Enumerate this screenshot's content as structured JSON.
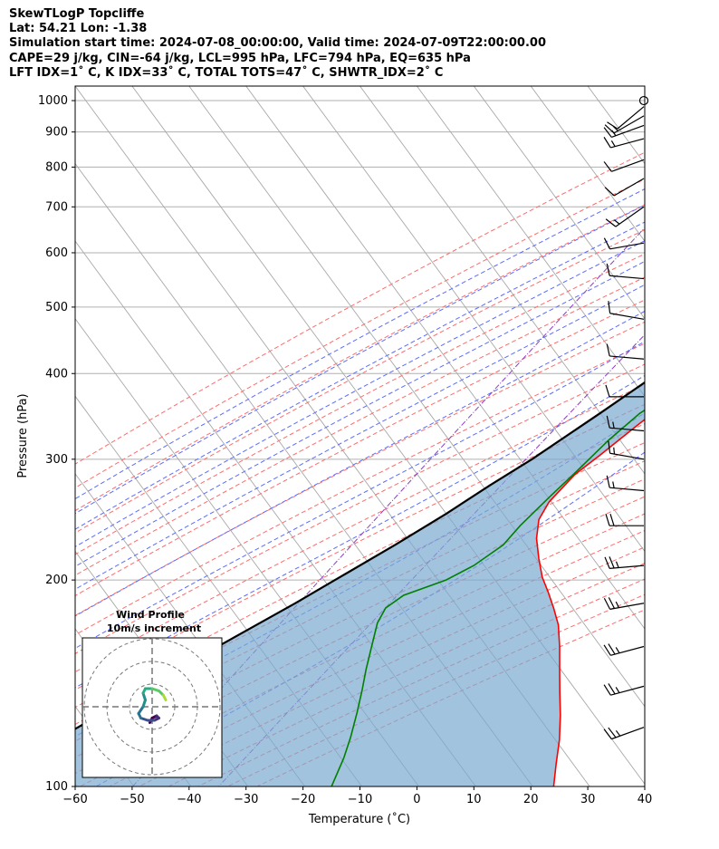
{
  "header": {
    "line1": "SkewTLogP Topcliffe",
    "line2": "Lat: 54.21   Lon: -1.38",
    "line3": "Simulation start time: 2024-07-08_00:00:00, Valid time: 2024-07-09T22:00:00.00",
    "line4": "CAPE=29 j/kg, CIN=-64 j/kg, LCL=995 hPa, LFC=794 hPa, EQ=635 hPa",
    "line5": "LFT IDX=1˚ C, K IDX=33˚ C, TOTAL TOTS=47˚ C, SHWTR_IDX=2˚ C"
  },
  "inset": {
    "title_line1": "Wind Profile",
    "title_line2": "10m/s increment"
  },
  "chart_data": {
    "type": "line",
    "subtype": "skew-T log-P diagram",
    "xlabel": "Temperature (˚C)",
    "ylabel": "Pressure (hPa)",
    "xlim": [
      -60,
      40
    ],
    "ylim": [
      1050,
      100
    ],
    "y_scale": "log",
    "x_ticks": [
      -60,
      -50,
      -40,
      -30,
      -20,
      -10,
      0,
      10,
      20,
      30,
      40
    ],
    "y_ticks": [
      1000,
      900,
      800,
      700,
      600,
      500,
      400,
      300,
      200,
      100
    ],
    "grid": true,
    "series": [
      {
        "kind": "temperature",
        "color": "#ff0000",
        "points": [
          [
            18,
            1000
          ],
          [
            18.5,
            970
          ],
          [
            17.5,
            930
          ],
          [
            16.5,
            880
          ],
          [
            14.5,
            800
          ],
          [
            13,
            750
          ],
          [
            11.5,
            700
          ],
          [
            10,
            650
          ],
          [
            8,
            600
          ],
          [
            5.5,
            550
          ],
          [
            3,
            500
          ],
          [
            0,
            450
          ],
          [
            -3,
            400
          ],
          [
            -5.5,
            365
          ],
          [
            -8,
            335
          ],
          [
            -10.5,
            305
          ],
          [
            -12.5,
            285
          ],
          [
            -13.5,
            260
          ],
          [
            -13,
            245
          ],
          [
            -11,
            230
          ],
          [
            -8,
            215
          ],
          [
            -5,
            202
          ],
          [
            -2,
            192
          ],
          [
            1,
            182
          ],
          [
            4,
            172
          ],
          [
            7,
            160
          ],
          [
            10,
            148
          ],
          [
            13,
            137
          ],
          [
            16,
            127
          ],
          [
            19,
            117
          ],
          [
            21.5,
            108
          ],
          [
            24,
            100
          ]
        ]
      },
      {
        "kind": "dewpoint",
        "color": "#008000",
        "points": [
          [
            17.5,
            1000
          ],
          [
            16.5,
            960
          ],
          [
            14.5,
            910
          ],
          [
            13,
            870
          ],
          [
            12,
            820
          ],
          [
            11.5,
            780
          ],
          [
            11,
            740
          ],
          [
            10.5,
            700
          ],
          [
            9.5,
            660
          ],
          [
            8,
            620
          ],
          [
            6,
            570
          ],
          [
            3.5,
            510
          ],
          [
            1,
            460
          ],
          [
            -2,
            410
          ],
          [
            -5.5,
            380
          ],
          [
            -9,
            350
          ],
          [
            -11,
            320
          ],
          [
            -12.5,
            290
          ],
          [
            -14,
            265
          ],
          [
            -15.5,
            240
          ],
          [
            -16,
            225
          ],
          [
            -18.5,
            210
          ],
          [
            -21.5,
            200
          ],
          [
            -27,
            190
          ],
          [
            -28.5,
            182
          ],
          [
            -28,
            173
          ],
          [
            -26,
            160
          ],
          [
            -24,
            148
          ],
          [
            -22,
            138
          ],
          [
            -20,
            128
          ],
          [
            -18,
            118
          ],
          [
            -16.5,
            110
          ],
          [
            -15,
            100
          ]
        ]
      },
      {
        "kind": "parcel",
        "color": "#000000",
        "points": [
          [
            17.5,
            1000
          ],
          [
            17,
            950
          ],
          [
            15.8,
            900
          ],
          [
            14.2,
            850
          ],
          [
            12.5,
            800
          ],
          [
            10.5,
            750
          ],
          [
            8.3,
            700
          ],
          [
            6,
            650
          ],
          [
            3.5,
            600
          ],
          [
            0.5,
            550
          ],
          [
            -2.5,
            500
          ],
          [
            -6.5,
            450
          ],
          [
            -11,
            400
          ],
          [
            -16,
            350
          ],
          [
            -22,
            300
          ],
          [
            -26,
            275
          ],
          [
            -30,
            250
          ],
          [
            -35,
            225
          ],
          [
            -41,
            200
          ],
          [
            -45,
            185
          ],
          [
            -49,
            172
          ],
          [
            -53,
            160
          ],
          [
            -58,
            145
          ],
          [
            -63,
            132
          ],
          [
            -68,
            120
          ],
          [
            -73,
            110
          ],
          [
            -77,
            100
          ]
        ]
      }
    ],
    "shading": "CAPE region between parcel and temperature profile",
    "wind_barbs": [
      {
        "pressure": 1000,
        "type": "calm"
      },
      {
        "pressure": 980,
        "direction_deg": 230,
        "speed_kt": 10
      },
      {
        "pressure": 950,
        "direction_deg": 240,
        "speed_kt": 15
      },
      {
        "pressure": 920,
        "direction_deg": 250,
        "speed_kt": 15
      },
      {
        "pressure": 880,
        "direction_deg": 255,
        "speed_kt": 15
      },
      {
        "pressure": 820,
        "direction_deg": 250,
        "speed_kt": 10
      },
      {
        "pressure": 770,
        "direction_deg": 240,
        "speed_kt": 10
      },
      {
        "pressure": 700,
        "direction_deg": 235,
        "speed_kt": 15
      },
      {
        "pressure": 620,
        "direction_deg": 260,
        "speed_kt": 10
      },
      {
        "pressure": 550,
        "direction_deg": 275,
        "speed_kt": 10
      },
      {
        "pressure": 480,
        "direction_deg": 280,
        "speed_kt": 10
      },
      {
        "pressure": 420,
        "direction_deg": 275,
        "speed_kt": 10
      },
      {
        "pressure": 370,
        "direction_deg": 270,
        "speed_kt": 10
      },
      {
        "pressure": 330,
        "direction_deg": 275,
        "speed_kt": 15
      },
      {
        "pressure": 300,
        "direction_deg": 280,
        "speed_kt": 15
      },
      {
        "pressure": 270,
        "direction_deg": 275,
        "speed_kt": 15
      },
      {
        "pressure": 240,
        "direction_deg": 270,
        "speed_kt": 20
      },
      {
        "pressure": 210,
        "direction_deg": 265,
        "speed_kt": 25
      },
      {
        "pressure": 185,
        "direction_deg": 260,
        "speed_kt": 25
      },
      {
        "pressure": 160,
        "direction_deg": 255,
        "speed_kt": 25
      },
      {
        "pressure": 140,
        "direction_deg": 255,
        "speed_kt": 25
      },
      {
        "pressure": 122,
        "direction_deg": 250,
        "speed_kt": 25
      }
    ],
    "hodograph": {
      "rings": [
        10,
        20,
        30
      ],
      "points_ms": [
        [
          -1,
          -7
        ],
        [
          0,
          -5
        ],
        [
          2,
          -4
        ],
        [
          3,
          -5
        ],
        [
          1,
          -6
        ],
        [
          -2,
          -6
        ],
        [
          -5,
          -5
        ],
        [
          -6,
          -3
        ],
        [
          -4,
          0
        ],
        [
          -3,
          3
        ],
        [
          -4,
          6
        ],
        [
          -3,
          8
        ],
        [
          0,
          8
        ],
        [
          3,
          7
        ],
        [
          5,
          5
        ],
        [
          6,
          3
        ]
      ]
    }
  }
}
